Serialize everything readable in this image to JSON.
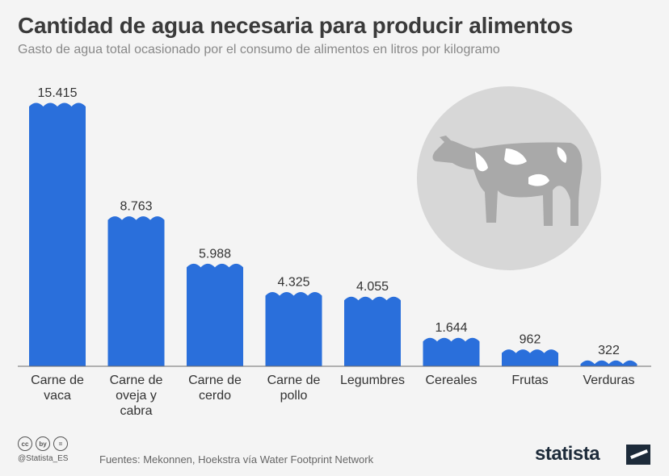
{
  "header": {
    "title": "Cantidad de agua necesaria para producir alimentos",
    "subtitle": "Gasto de agua total ocasionado por el consumo de alimentos en litros por kilogramo"
  },
  "chart_data": {
    "type": "bar",
    "title": "Cantidad de agua necesaria para producir alimentos",
    "subtitle": "Gasto de agua total ocasionado por el consumo de alimentos en litros por kilogramo",
    "categories": [
      [
        "Carne de",
        "vaca"
      ],
      [
        "Carne de",
        "oveja y",
        "cabra"
      ],
      [
        "Carne de",
        "cerdo"
      ],
      [
        "Carne de",
        "pollo"
      ],
      [
        "Legumbres"
      ],
      [
        "Cereales"
      ],
      [
        "Frutas"
      ],
      [
        "Verduras"
      ]
    ],
    "values": [
      15415,
      8763,
      5988,
      4325,
      4055,
      1644,
      962,
      322
    ],
    "value_labels": [
      "15.415",
      "8.763",
      "5.988",
      "4.325",
      "4.055",
      "1.644",
      "962",
      "322"
    ],
    "ylim": [
      0,
      15415
    ],
    "xlabel": "",
    "ylabel": "litros por kilogramo",
    "grid": false,
    "bar_color": "#2a6fdb"
  },
  "illustration": {
    "icon": "cow-icon",
    "circle_color": "#d7d7d7",
    "cow_color": "#a9a9a9"
  },
  "footer": {
    "license_icons": [
      "cc",
      "by",
      "="
    ],
    "handle": "@Statista_ES",
    "source": "Fuentes: Mekonnen, Hoekstra vía Water Footprint Network",
    "brand": "statista"
  }
}
